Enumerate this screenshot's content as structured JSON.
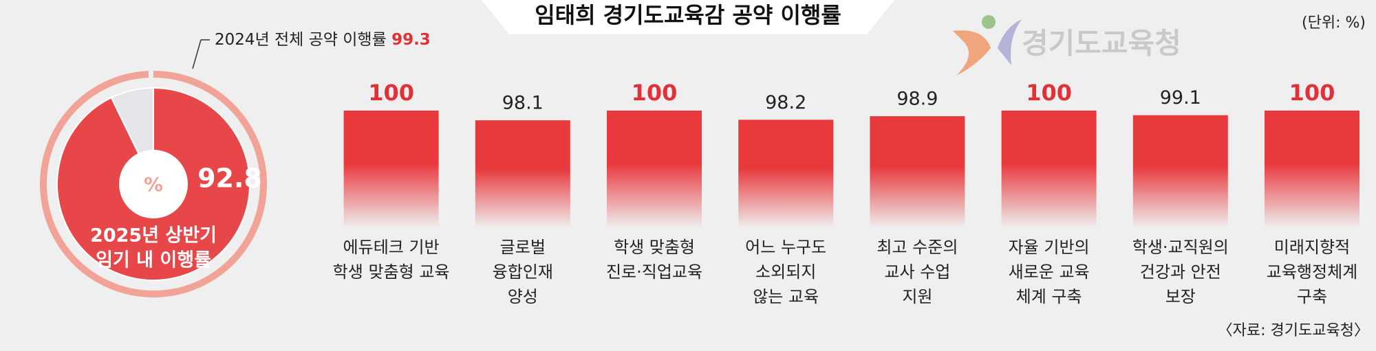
{
  "header": {
    "title": "임태희 경기도교육감 공약 이행률",
    "unit": "(단위: %)",
    "logo": "경기도교육청"
  },
  "source": "〈자료: 경기도교육청〉",
  "chart_data": [
    {
      "type": "pie",
      "values": [
        92.8,
        7.2
      ],
      "colors": [
        "#e8474a",
        "#e6e6ea"
      ],
      "categories": [
        [
          "2025년 상반기",
          "임기 내 이행률"
        ],
        null
      ],
      "unit_label": "%",
      "reference": {
        "label": "2024년 전체 공약 이행률",
        "value": 99.3,
        "color": "#f0a396"
      }
    },
    {
      "type": "bar",
      "color": "#e8393d",
      "highlight_color": "#e23036",
      "categories": [
        [
          "에듀테크 기반",
          "학생 맞춤형 교육"
        ],
        [
          "글로벌",
          "융합인재",
          "양성"
        ],
        [
          "학생 맞춤형",
          "진로·직업교육"
        ],
        [
          "어느 누구도",
          "소외되지",
          "않는 교육"
        ],
        [
          "최고 수준의",
          "교사 수업",
          "지원"
        ],
        [
          "자율 기반의",
          "새로운 교육",
          "체계 구축"
        ],
        [
          "학생·교직원의",
          "건강과 안전",
          "보장"
        ],
        [
          "미래지향적",
          "교육행정체계",
          "구축"
        ]
      ],
      "values": [
        100,
        98.1,
        100,
        98.2,
        98.9,
        100,
        99.1,
        100
      ],
      "ylim": [
        77,
        100
      ]
    }
  ]
}
